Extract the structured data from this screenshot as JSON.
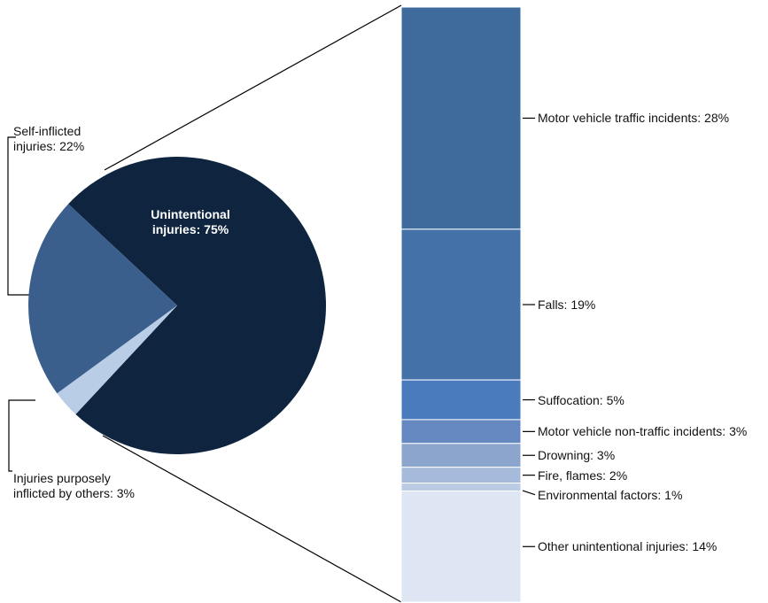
{
  "chart_data": [
    {
      "type": "pie",
      "values": [
        75,
        3,
        22
      ],
      "value_labels": [
        "Unintentional injuries: 75%",
        "Injuries purposely inflicted by others: 3%",
        "Self-inflicted injuries: 22%"
      ],
      "colors": [
        "#0e243f",
        "#b9cde6",
        "#3b5f8d"
      ]
    },
    {
      "type": "stacked-bar",
      "values": [
        28,
        19,
        5,
        3,
        3,
        2,
        1,
        14
      ],
      "value_labels": [
        "Motor vehicle traffic incidents: 28%",
        "Falls: 19%",
        "Suffocation: 5%",
        "Motor vehicle non-traffic incidents: 3%",
        "Drowning: 3%",
        "Fire, flames: 2%",
        "Environmental factors: 1%",
        "Other unintentional injuries: 14%"
      ],
      "colors": [
        "#3f6b9c",
        "#4472a8",
        "#4a7bbd",
        "#6688c0",
        "#8ca5cc",
        "#a6bbdb",
        "#bccbe4",
        "#dde6f2"
      ]
    }
  ]
}
